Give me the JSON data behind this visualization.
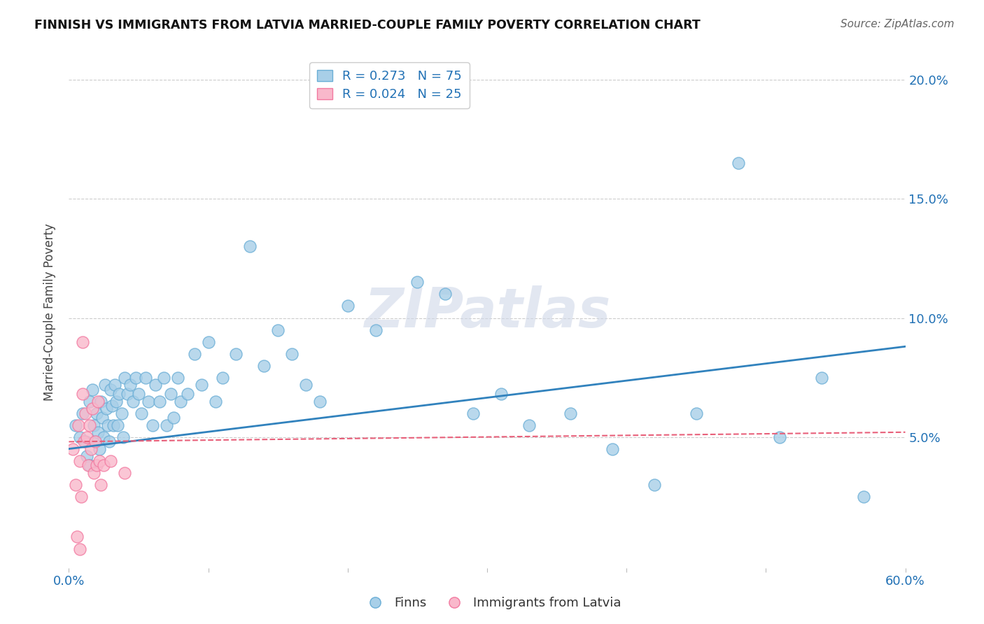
{
  "title": "FINNISH VS IMMIGRANTS FROM LATVIA MARRIED-COUPLE FAMILY POVERTY CORRELATION CHART",
  "source": "Source: ZipAtlas.com",
  "ylabel": "Married-Couple Family Poverty",
  "xlim": [
    0.0,
    0.6
  ],
  "ylim": [
    -0.005,
    0.21
  ],
  "xticks": [
    0.0,
    0.1,
    0.2,
    0.3,
    0.4,
    0.5,
    0.6
  ],
  "xtick_labels": [
    "0.0%",
    "",
    "",
    "",
    "",
    "",
    "60.0%"
  ],
  "yticks": [
    0.0,
    0.05,
    0.1,
    0.15,
    0.2
  ],
  "ytick_labels": [
    "",
    "5.0%",
    "10.0%",
    "15.0%",
    "20.0%"
  ],
  "blue_color": "#a8cfe8",
  "blue_edge_color": "#6aaed6",
  "pink_color": "#f9b8cb",
  "pink_edge_color": "#f279a0",
  "blue_line_color": "#3182bd",
  "pink_line_color": "#e8607a",
  "legend_R_blue": "R = 0.273",
  "legend_N_blue": "N = 75",
  "legend_R_pink": "R = 0.024",
  "legend_N_pink": "N = 25",
  "watermark": "ZIPatlas",
  "blue_scatter_x": [
    0.005,
    0.008,
    0.01,
    0.012,
    0.013,
    0.015,
    0.015,
    0.017,
    0.018,
    0.019,
    0.02,
    0.021,
    0.022,
    0.023,
    0.024,
    0.025,
    0.026,
    0.027,
    0.028,
    0.029,
    0.03,
    0.031,
    0.032,
    0.033,
    0.034,
    0.035,
    0.036,
    0.038,
    0.039,
    0.04,
    0.042,
    0.044,
    0.046,
    0.048,
    0.05,
    0.052,
    0.055,
    0.057,
    0.06,
    0.062,
    0.065,
    0.068,
    0.07,
    0.073,
    0.075,
    0.078,
    0.08,
    0.085,
    0.09,
    0.095,
    0.1,
    0.105,
    0.11,
    0.12,
    0.13,
    0.14,
    0.15,
    0.16,
    0.17,
    0.18,
    0.2,
    0.22,
    0.25,
    0.27,
    0.29,
    0.31,
    0.33,
    0.36,
    0.39,
    0.42,
    0.45,
    0.48,
    0.51,
    0.54,
    0.57
  ],
  "blue_scatter_y": [
    0.055,
    0.05,
    0.06,
    0.048,
    0.042,
    0.065,
    0.038,
    0.07,
    0.055,
    0.048,
    0.06,
    0.052,
    0.045,
    0.065,
    0.058,
    0.05,
    0.072,
    0.062,
    0.055,
    0.048,
    0.07,
    0.063,
    0.055,
    0.072,
    0.065,
    0.055,
    0.068,
    0.06,
    0.05,
    0.075,
    0.068,
    0.072,
    0.065,
    0.075,
    0.068,
    0.06,
    0.075,
    0.065,
    0.055,
    0.072,
    0.065,
    0.075,
    0.055,
    0.068,
    0.058,
    0.075,
    0.065,
    0.068,
    0.085,
    0.072,
    0.09,
    0.065,
    0.075,
    0.085,
    0.13,
    0.08,
    0.095,
    0.085,
    0.072,
    0.065,
    0.105,
    0.095,
    0.115,
    0.11,
    0.06,
    0.068,
    0.055,
    0.06,
    0.045,
    0.03,
    0.06,
    0.165,
    0.05,
    0.075,
    0.025
  ],
  "pink_scatter_x": [
    0.003,
    0.005,
    0.006,
    0.007,
    0.008,
    0.008,
    0.009,
    0.01,
    0.01,
    0.011,
    0.012,
    0.013,
    0.014,
    0.015,
    0.016,
    0.017,
    0.018,
    0.019,
    0.02,
    0.021,
    0.022,
    0.023,
    0.025,
    0.03,
    0.04
  ],
  "pink_scatter_y": [
    0.045,
    0.03,
    0.008,
    0.055,
    0.04,
    0.003,
    0.025,
    0.09,
    0.068,
    0.048,
    0.06,
    0.05,
    0.038,
    0.055,
    0.045,
    0.062,
    0.035,
    0.048,
    0.038,
    0.065,
    0.04,
    0.03,
    0.038,
    0.04,
    0.035
  ],
  "blue_line_y_start": 0.045,
  "blue_line_y_end": 0.088,
  "pink_line_y_start": 0.048,
  "pink_line_y_end": 0.052
}
